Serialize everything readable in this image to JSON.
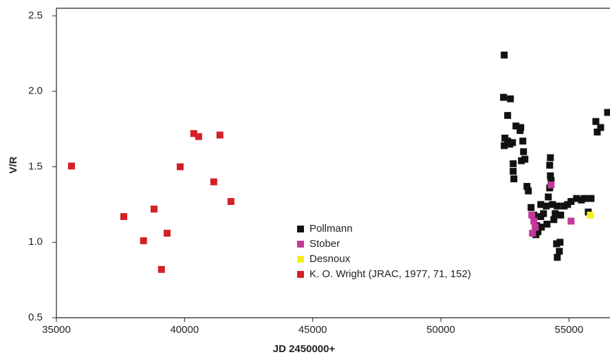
{
  "chart_data": {
    "type": "scatter",
    "xlabel": "JD 2450000+",
    "ylabel": "V/R",
    "xlim": [
      35000,
      56600
    ],
    "ylim": [
      0.5,
      2.55
    ],
    "xticks": [
      35000,
      40000,
      45000,
      50000,
      55000
    ],
    "yticks": [
      {
        "value": 0.5,
        "label": "0.5"
      },
      {
        "value": 1.0,
        "label": "1.0"
      },
      {
        "value": 1.5,
        "label": "1.5"
      },
      {
        "value": 2.0,
        "label": "2.0"
      },
      {
        "value": 2.5,
        "label": "2.5"
      }
    ],
    "series": [
      {
        "name": "Pollmann",
        "color": "#111111",
        "x": [
          52473,
          52446,
          52715,
          52607,
          52500,
          52473,
          52607,
          52796,
          52688,
          52930,
          53091,
          53118,
          53199,
          53226,
          53145,
          53280,
          52822,
          52822,
          52849,
          53360,
          53414,
          53521,
          53629,
          53737,
          53710,
          53790,
          53925,
          53898,
          53898,
          54193,
          54247,
          54301,
          54274,
          54247,
          54274,
          54113,
          54005,
          54140,
          54355,
          54462,
          54543,
          54409,
          54516,
          54624,
          54543,
          54650,
          54677,
          54812,
          54946,
          55080,
          55295,
          55484,
          55591,
          55860,
          55752,
          56048,
          56102,
          56236,
          56505
        ],
        "values": [
          2.24,
          1.96,
          1.95,
          1.84,
          1.69,
          1.64,
          1.67,
          1.66,
          1.65,
          1.77,
          1.74,
          1.76,
          1.67,
          1.6,
          1.54,
          1.55,
          1.52,
          1.47,
          1.42,
          1.37,
          1.34,
          1.23,
          1.18,
          1.11,
          1.05,
          1.07,
          1.1,
          1.17,
          1.25,
          1.3,
          1.36,
          1.41,
          1.44,
          1.51,
          1.56,
          1.24,
          1.19,
          1.12,
          1.25,
          1.19,
          1.24,
          1.15,
          0.99,
          0.94,
          0.9,
          1.0,
          1.18,
          1.24,
          1.25,
          1.27,
          1.29,
          1.28,
          1.29,
          1.29,
          1.2,
          1.8,
          1.73,
          1.76,
          1.86
        ]
      },
      {
        "name": "Stober",
        "color": "#c2399a",
        "x": [
          53548,
          53629,
          53575,
          53683,
          54301,
          55080
        ],
        "values": [
          1.18,
          1.14,
          1.06,
          1.1,
          1.38,
          1.14
        ]
      },
      {
        "name": "Desnoux",
        "color": "#f5ef1e",
        "x": [
          55833
        ],
        "values": [
          1.18
        ]
      },
      {
        "name": "K. O. Wright (JRAC, 1977, 71, 152)",
        "color": "#d42027",
        "x": [
          35590,
          37630,
          38400,
          38810,
          39320,
          39100,
          39830,
          40360,
          40550,
          41380,
          41140,
          41810
        ],
        "values": [
          1.505,
          1.17,
          1.01,
          1.22,
          1.06,
          0.82,
          1.5,
          1.72,
          1.7,
          1.71,
          1.4,
          1.27
        ]
      }
    ]
  }
}
